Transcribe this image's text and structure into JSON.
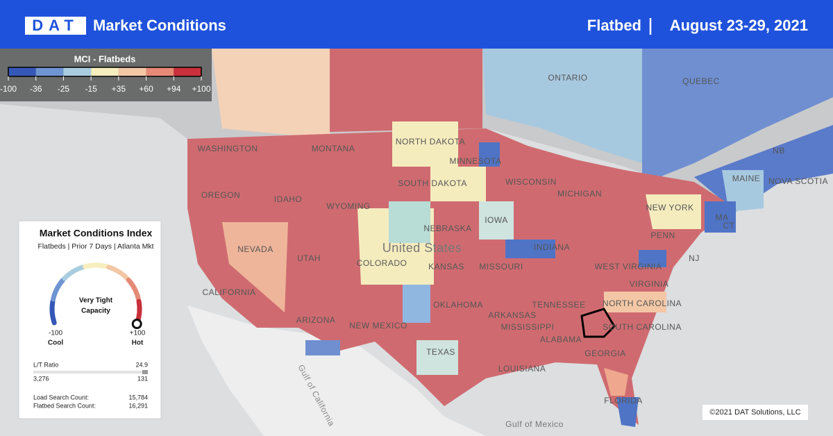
{
  "header": {
    "logo": "DAT",
    "title": "Market Conditions",
    "equipment": "Flatbed",
    "date_range": "August 23-29, 2021"
  },
  "legend": {
    "title": "MCI - Flatbeds",
    "ticks": [
      -100,
      -36,
      -25,
      -15,
      {
        "value": 35,
        "label": "+35"
      },
      {
        "value": 60,
        "label": "+60"
      },
      {
        "value": 94,
        "label": "+94"
      },
      {
        "value": 100,
        "label": "+100"
      }
    ],
    "colors": [
      "#3557b7",
      "#6f94d2",
      "#a9cde0",
      "#f6eebd",
      "#f3c7a6",
      "#e58a76",
      "#c8303b"
    ]
  },
  "map": {
    "labels": [
      "ONTARIO",
      "QUEBEC",
      "WASHINGTON",
      "MONTANA",
      "NORTH DAKOTA",
      "MINNESOTA",
      "SOUTH DAKOTA",
      "WISCONSIN",
      "MICHIGAN",
      "MAINE",
      "NOVA SCOTIA",
      "NB",
      "NEW YORK",
      "OREGON",
      "IDAHO",
      "WYOMING",
      "NEBRASKA",
      "IOWA",
      "United States",
      "NEVADA",
      "UTAH",
      "COLORADO",
      "KANSAS",
      "MISSOURI",
      "INDIANA",
      "PENN",
      "NJ",
      "WEST VIRGINIA",
      "VIRGINIA",
      "CALIFORNIA",
      "NORTH CAROLINA",
      "TENNESSEE",
      "ARKANSAS",
      "OKLAHOMA",
      "ARIZONA",
      "NEW MEXICO",
      "SOUTH CAROLINA",
      "MISSISSIPPI",
      "ALABAMA",
      "GEORGIA",
      "TEXAS",
      "LOUISIANA",
      "FLORIDA",
      "Gulf of Mexico",
      "Gulf of California",
      "MA",
      "CT"
    ],
    "copyright": "©2021 DAT Solutions, LLC"
  },
  "panel": {
    "title": "Market Conditions Index",
    "subtitle": "Flatbeds | Prior 7 Days | Atlanta Mkt",
    "status_lines": [
      "Very Tight",
      "Capacity"
    ],
    "gauge": {
      "min": -100,
      "min_label": "Cool",
      "max": {
        "value": 100,
        "label": "+100"
      },
      "max_label": "Hot"
    },
    "lt_ratio": {
      "label": "L/T Ratio",
      "value": 24.9,
      "loads": {
        "value": 3276,
        "label": "3,276"
      },
      "trucks": 131
    },
    "load_search": {
      "label": "Load Search Count:",
      "value": {
        "value": 15784,
        "label": "15,784"
      }
    },
    "flatbed_search": {
      "label": "Flatbed Search Count:",
      "value": {
        "value": 16291,
        "label": "16,291"
      }
    }
  }
}
